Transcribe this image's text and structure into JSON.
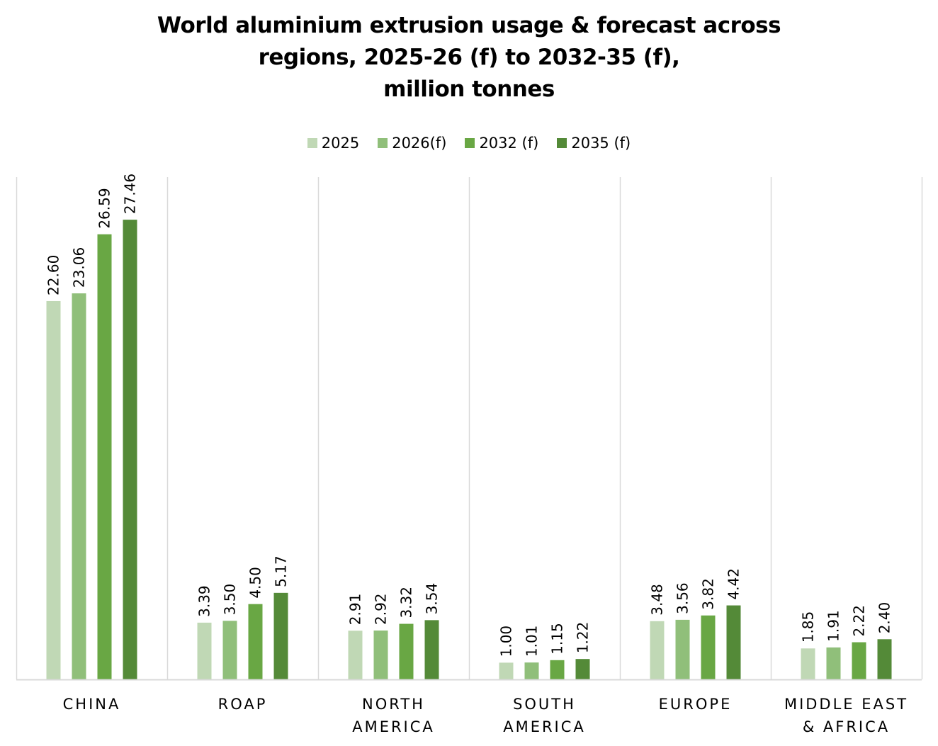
{
  "chart_data": {
    "type": "bar",
    "title_lines": [
      "World aluminium extrusion usage & forecast across",
      "regions, 2025-26 (f) to 2032-35 (f),",
      "million tonnes"
    ],
    "categories": [
      [
        "CHINA"
      ],
      [
        "ROAP"
      ],
      [
        "NORTH",
        "AMERICA"
      ],
      [
        "SOUTH",
        "AMERICA"
      ],
      [
        "EUROPE"
      ],
      [
        "MIDDLE EAST",
        "& AFRICA"
      ]
    ],
    "series": [
      {
        "name": "2025",
        "color": "#c0d8b5",
        "values": [
          22.6,
          3.39,
          2.91,
          1.0,
          3.48,
          1.85
        ],
        "labels": [
          "22.60",
          "3.39",
          "2.91",
          "1.00",
          "3.48",
          "1.85"
        ]
      },
      {
        "name": "2026(f)",
        "color": "#90bf7a",
        "values": [
          23.06,
          3.5,
          2.92,
          1.01,
          3.56,
          1.91
        ],
        "labels": [
          "23.06",
          "3.50",
          "2.92",
          "1.01",
          "3.56",
          "1.91"
        ]
      },
      {
        "name": "2032 (f)",
        "color": "#69a744",
        "values": [
          26.59,
          4.5,
          3.32,
          1.15,
          3.82,
          2.22
        ],
        "labels": [
          "26.59",
          "4.50",
          "3.32",
          "1.15",
          "3.82",
          "2.22"
        ]
      },
      {
        "name": "2035 (f)",
        "color": "#548a38",
        "values": [
          27.46,
          5.17,
          3.54,
          1.22,
          4.42,
          2.4
        ],
        "labels": [
          "27.46",
          "5.17",
          "3.54",
          "1.22",
          "4.42",
          "2.40"
        ]
      }
    ],
    "ylim": [
      0,
      30
    ],
    "legend_position": "top",
    "grid": "vertical category separators"
  }
}
